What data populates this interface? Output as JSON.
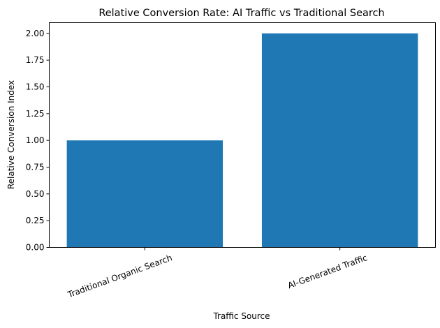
{
  "chart_data": {
    "type": "bar",
    "title": "Relative Conversion Rate: AI Traffic vs Traditional Search",
    "xlabel": "Traffic Source",
    "ylabel": "Relative Conversion Index",
    "categories": [
      "Traditional Organic Search",
      "AI-Generated Traffic"
    ],
    "values": [
      1.0,
      2.0
    ],
    "ylim": [
      0,
      2.1
    ],
    "yticks": [
      "0.00",
      "0.25",
      "0.50",
      "0.75",
      "1.00",
      "1.25",
      "1.50",
      "1.75",
      "2.00"
    ],
    "xtick_rotation": 20,
    "grid": false,
    "legend": null,
    "bar_color": "#1f77b4"
  }
}
